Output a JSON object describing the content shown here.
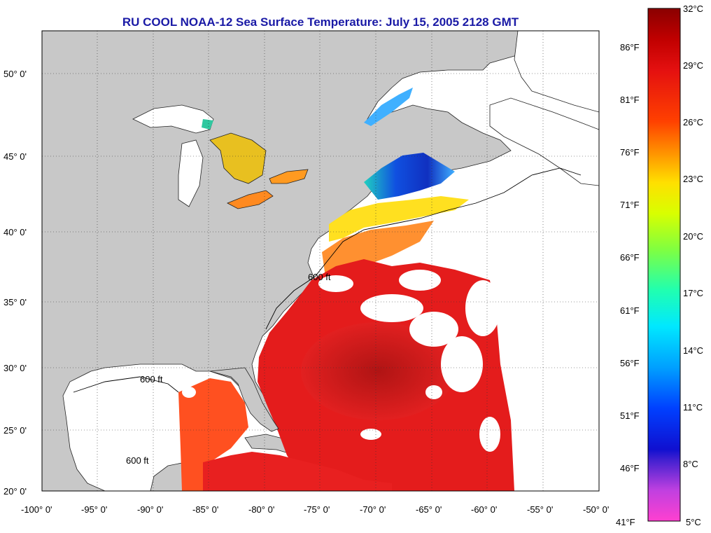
{
  "title": "RU COOL  NOAA-12  Sea Surface Temperature:  July 15, 2005 2128 GMT",
  "lat_ticks": [
    "50° 0'",
    "45° 0'",
    "40° 0'",
    "35° 0'",
    "30° 0'",
    "25° 0'",
    "20° 0'"
  ],
  "lon_ticks": [
    "-100° 0'",
    "-95° 0'",
    "-90° 0'",
    "-85° 0'",
    "-80° 0'",
    "-75° 0'",
    "-70° 0'",
    "-65° 0'",
    "-60° 0'",
    "-55° 0'",
    "-50° 0'"
  ],
  "isobath_label": "600 ft",
  "colorbar": {
    "celsius": [
      "32°C",
      "29°C",
      "26°C",
      "23°C",
      "20°C",
      "17°C",
      "14°C",
      "11°C",
      "8°C",
      "5°C"
    ],
    "fahrenheit": [
      "86°F",
      "81°F",
      "76°F",
      "71°F",
      "66°F",
      "61°F",
      "56°F",
      "51°F",
      "46°F",
      "41°F"
    ]
  },
  "colors": {
    "land": "#c8c8c8",
    "no_data": "#ffffff",
    "title": "#1a1aa6",
    "warm": "#e8201c",
    "hot": "#b01010",
    "cold": "#1030d0"
  }
}
